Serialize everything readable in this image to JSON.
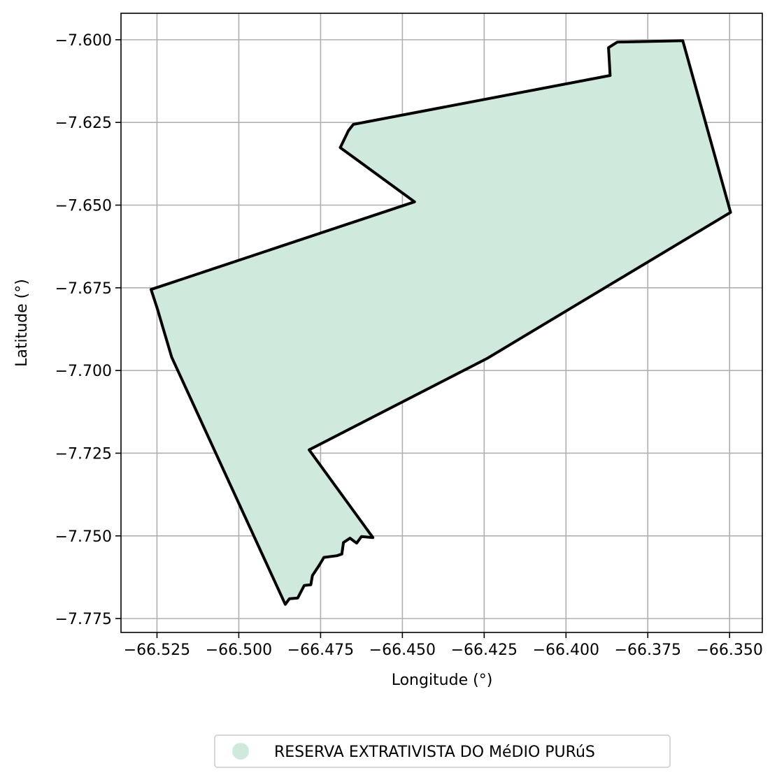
{
  "chart_data": {
    "type": "map",
    "xlabel": "Longitude (°)",
    "ylabel": "Latitude (°)",
    "xlim": [
      -66.536,
      -66.34
    ],
    "ylim": [
      -7.7792,
      -7.592
    ],
    "xticks": [
      -66.525,
      -66.5,
      -66.475,
      -66.45,
      -66.425,
      -66.4,
      -66.375,
      -66.35
    ],
    "xtick_labels": [
      "−66.525",
      "−66.500",
      "−66.475",
      "−66.450",
      "−66.425",
      "−66.400",
      "−66.375",
      "−66.350"
    ],
    "yticks": [
      -7.6,
      -7.625,
      -7.65,
      -7.675,
      -7.7,
      -7.725,
      -7.75,
      -7.775
    ],
    "ytick_labels": [
      "−7.600",
      "−7.625",
      "−7.650",
      "−7.675",
      "−7.700",
      "−7.725",
      "−7.750",
      "−7.775"
    ],
    "grid": true,
    "legend_position": "bottom-center",
    "fill_color": "#cfeadd",
    "edge_color": "#000000",
    "series": [
      {
        "name": "RESERVA EXTRATIVISTA DO MéDIO PURúS",
        "polygon": [
          [
            -66.3497,
            -7.6522
          ],
          [
            -66.3643,
            -7.6003
          ],
          [
            -66.3843,
            -7.6007
          ],
          [
            -66.387,
            -7.6024
          ],
          [
            -66.3865,
            -7.6108
          ],
          [
            -66.465,
            -7.6256
          ],
          [
            -66.4665,
            -7.6275
          ],
          [
            -66.469,
            -7.6326
          ],
          [
            -66.4463,
            -7.649
          ],
          [
            -66.5268,
            -7.6755
          ],
          [
            -66.525,
            -7.681
          ],
          [
            -66.5205,
            -7.696
          ],
          [
            -66.4858,
            -7.7707
          ],
          [
            -66.4845,
            -7.769
          ],
          [
            -66.482,
            -7.7688
          ],
          [
            -66.48,
            -7.765
          ],
          [
            -66.478,
            -7.7648
          ],
          [
            -66.4775,
            -7.762
          ],
          [
            -66.4755,
            -7.759
          ],
          [
            -66.474,
            -7.7565
          ],
          [
            -66.47,
            -7.756
          ],
          [
            -66.4685,
            -7.7555
          ],
          [
            -66.468,
            -7.752
          ],
          [
            -66.466,
            -7.7507
          ],
          [
            -66.464,
            -7.7522
          ],
          [
            -66.4625,
            -7.7502
          ],
          [
            -66.459,
            -7.7505
          ],
          [
            -66.4785,
            -7.724
          ],
          [
            -66.424,
            -7.6963
          ],
          [
            -66.3497,
            -7.6522
          ]
        ]
      }
    ]
  }
}
